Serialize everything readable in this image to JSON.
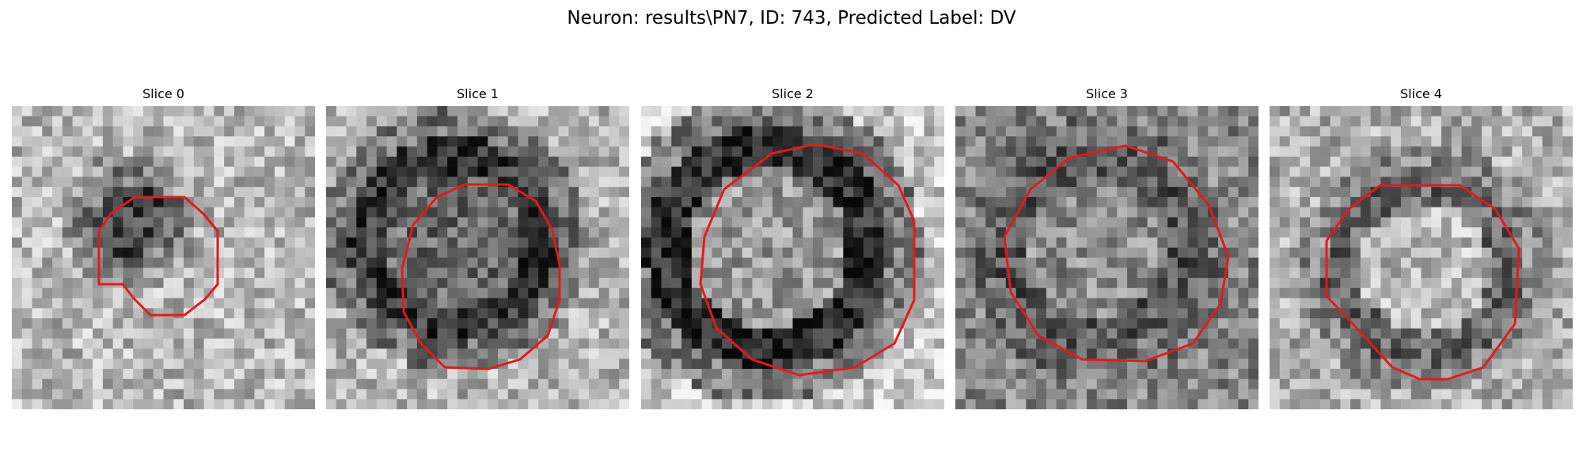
{
  "figure": {
    "title": "Neuron: results\\PN7, ID: 743, Predicted Label: DV"
  },
  "slices": [
    {
      "title": "Slice 0",
      "seed": 11,
      "center_brightness": 0.28,
      "ring_brightness": 0.48,
      "bg_brightness": 0.72
    },
    {
      "title": "Slice 1",
      "seed": 23,
      "center_brightness": 0.42,
      "ring_brightness": 0.22,
      "bg_brightness": 0.7
    },
    {
      "title": "Slice 2",
      "seed": 37,
      "center_brightness": 0.6,
      "ring_brightness": 0.18,
      "bg_brightness": 0.78
    },
    {
      "title": "Slice 3",
      "seed": 41,
      "center_brightness": 0.55,
      "ring_brightness": 0.34,
      "bg_brightness": 0.52
    },
    {
      "title": "Slice 4",
      "seed": 53,
      "center_brightness": 0.72,
      "ring_brightness": 0.4,
      "bg_brightness": 0.68
    }
  ],
  "colors": {
    "contour": "#e31a1c"
  }
}
